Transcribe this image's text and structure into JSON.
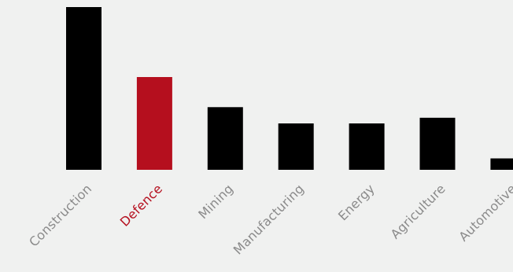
{
  "chart_data": {
    "type": "bar",
    "categories": [
      "Construction",
      "Defence",
      "Mining",
      "Manufacturing",
      "Energy",
      "Agriculture",
      "Automotive"
    ],
    "values": [
      100,
      57,
      38.5,
      28.5,
      28.5,
      32,
      7
    ],
    "highlight_index": 1,
    "ylim": [
      0,
      100
    ],
    "grid": false,
    "legend": "none",
    "colors": {
      "bar": "#000000",
      "highlight_bar": "#b50f1e",
      "label": "#8a8a8a",
      "highlight_label": "#b50f1e",
      "background": "#f0f1f0"
    }
  }
}
